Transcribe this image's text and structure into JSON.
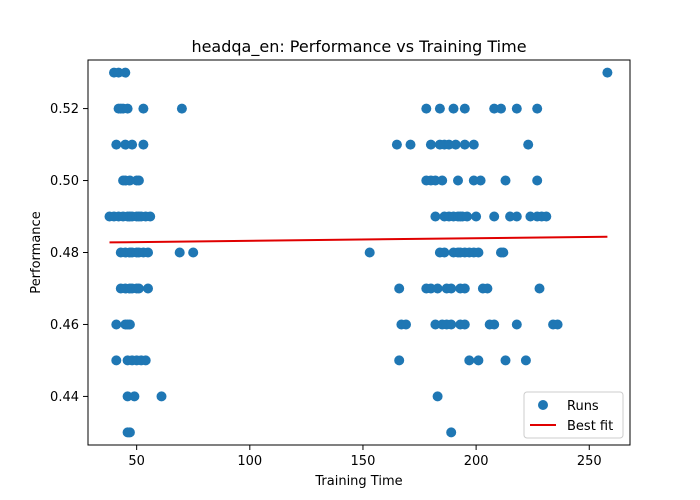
{
  "chart_data": {
    "type": "scatter",
    "title": "headqa_en: Performance vs Training Time",
    "xlabel": "Training Time",
    "ylabel": "Performance",
    "xlim": [
      28.5,
      268
    ],
    "ylim": [
      0.4265,
      0.5335
    ],
    "xticks": [
      50,
      100,
      150,
      200,
      250
    ],
    "xtick_labels": [
      "50",
      "100",
      "150",
      "200",
      "250"
    ],
    "yticks": [
      0.44,
      0.46,
      0.48,
      0.5,
      0.52
    ],
    "ytick_labels": [
      "0.44",
      "0.46",
      "0.48",
      "0.50",
      "0.52"
    ],
    "grid": false,
    "legend": {
      "position": "lower-right",
      "entries": [
        "Runs",
        "Best fit"
      ]
    },
    "colors": {
      "runs": "#1f77b4",
      "fit": "#e00000"
    },
    "series": [
      {
        "name": "Runs",
        "type": "scatter",
        "points": [
          [
            40,
            0.53
          ],
          [
            42,
            0.53
          ],
          [
            45,
            0.53
          ],
          [
            258,
            0.53
          ],
          [
            42,
            0.52
          ],
          [
            43,
            0.52
          ],
          [
            44,
            0.52
          ],
          [
            46,
            0.52
          ],
          [
            53,
            0.52
          ],
          [
            70,
            0.52
          ],
          [
            178,
            0.52
          ],
          [
            184,
            0.52
          ],
          [
            190,
            0.52
          ],
          [
            195,
            0.52
          ],
          [
            208,
            0.52
          ],
          [
            211,
            0.52
          ],
          [
            218,
            0.52
          ],
          [
            227,
            0.52
          ],
          [
            41,
            0.51
          ],
          [
            45,
            0.51
          ],
          [
            48,
            0.51
          ],
          [
            53,
            0.51
          ],
          [
            165,
            0.51
          ],
          [
            171,
            0.51
          ],
          [
            180,
            0.51
          ],
          [
            184,
            0.51
          ],
          [
            186,
            0.51
          ],
          [
            188,
            0.51
          ],
          [
            191,
            0.51
          ],
          [
            195,
            0.51
          ],
          [
            199,
            0.51
          ],
          [
            223,
            0.51
          ],
          [
            44,
            0.5
          ],
          [
            45,
            0.5
          ],
          [
            47,
            0.5
          ],
          [
            50,
            0.5
          ],
          [
            51,
            0.5
          ],
          [
            178,
            0.5
          ],
          [
            180,
            0.5
          ],
          [
            182,
            0.5
          ],
          [
            185,
            0.5
          ],
          [
            192,
            0.5
          ],
          [
            199,
            0.5
          ],
          [
            202,
            0.5
          ],
          [
            213,
            0.5
          ],
          [
            227,
            0.5
          ],
          [
            38,
            0.49
          ],
          [
            40,
            0.49
          ],
          [
            42,
            0.49
          ],
          [
            44,
            0.49
          ],
          [
            46,
            0.49
          ],
          [
            47,
            0.49
          ],
          [
            48,
            0.49
          ],
          [
            50,
            0.49
          ],
          [
            51,
            0.49
          ],
          [
            52,
            0.49
          ],
          [
            54,
            0.49
          ],
          [
            56,
            0.49
          ],
          [
            182,
            0.49
          ],
          [
            186,
            0.49
          ],
          [
            188,
            0.49
          ],
          [
            190,
            0.49
          ],
          [
            192,
            0.49
          ],
          [
            193,
            0.49
          ],
          [
            194,
            0.49
          ],
          [
            196,
            0.49
          ],
          [
            200,
            0.49
          ],
          [
            208,
            0.49
          ],
          [
            215,
            0.49
          ],
          [
            218,
            0.49
          ],
          [
            224,
            0.49
          ],
          [
            227,
            0.49
          ],
          [
            229,
            0.49
          ],
          [
            231,
            0.49
          ],
          [
            43,
            0.48
          ],
          [
            45,
            0.48
          ],
          [
            47,
            0.48
          ],
          [
            48,
            0.48
          ],
          [
            50,
            0.48
          ],
          [
            51,
            0.48
          ],
          [
            53,
            0.48
          ],
          [
            55,
            0.48
          ],
          [
            69,
            0.48
          ],
          [
            75,
            0.48
          ],
          [
            153,
            0.48
          ],
          [
            184,
            0.48
          ],
          [
            186,
            0.48
          ],
          [
            190,
            0.48
          ],
          [
            192,
            0.48
          ],
          [
            193,
            0.48
          ],
          [
            195,
            0.48
          ],
          [
            197,
            0.48
          ],
          [
            199,
            0.48
          ],
          [
            201,
            0.48
          ],
          [
            211,
            0.48
          ],
          [
            212,
            0.48
          ],
          [
            43,
            0.47
          ],
          [
            45,
            0.47
          ],
          [
            47,
            0.47
          ],
          [
            48,
            0.47
          ],
          [
            50,
            0.47
          ],
          [
            51,
            0.47
          ],
          [
            55,
            0.47
          ],
          [
            166,
            0.47
          ],
          [
            178,
            0.47
          ],
          [
            180,
            0.47
          ],
          [
            183,
            0.47
          ],
          [
            187,
            0.47
          ],
          [
            189,
            0.47
          ],
          [
            193,
            0.47
          ],
          [
            195,
            0.47
          ],
          [
            203,
            0.47
          ],
          [
            205,
            0.47
          ],
          [
            228,
            0.47
          ],
          [
            41,
            0.46
          ],
          [
            45,
            0.46
          ],
          [
            46,
            0.46
          ],
          [
            47,
            0.46
          ],
          [
            167,
            0.46
          ],
          [
            169,
            0.46
          ],
          [
            182,
            0.46
          ],
          [
            185,
            0.46
          ],
          [
            187,
            0.46
          ],
          [
            189,
            0.46
          ],
          [
            193,
            0.46
          ],
          [
            195,
            0.46
          ],
          [
            206,
            0.46
          ],
          [
            208,
            0.46
          ],
          [
            218,
            0.46
          ],
          [
            234,
            0.46
          ],
          [
            236,
            0.46
          ],
          [
            41,
            0.45
          ],
          [
            46,
            0.45
          ],
          [
            48,
            0.45
          ],
          [
            50,
            0.45
          ],
          [
            52,
            0.45
          ],
          [
            54,
            0.45
          ],
          [
            166,
            0.45
          ],
          [
            197,
            0.45
          ],
          [
            201,
            0.45
          ],
          [
            213,
            0.45
          ],
          [
            222,
            0.45
          ],
          [
            46,
            0.44
          ],
          [
            49,
            0.44
          ],
          [
            61,
            0.44
          ],
          [
            183,
            0.44
          ],
          [
            46,
            0.43
          ],
          [
            47,
            0.43
          ],
          [
            189,
            0.43
          ]
        ]
      },
      {
        "name": "Best fit",
        "type": "line",
        "points": [
          [
            38,
            0.4828
          ],
          [
            258,
            0.4844
          ]
        ]
      }
    ]
  }
}
